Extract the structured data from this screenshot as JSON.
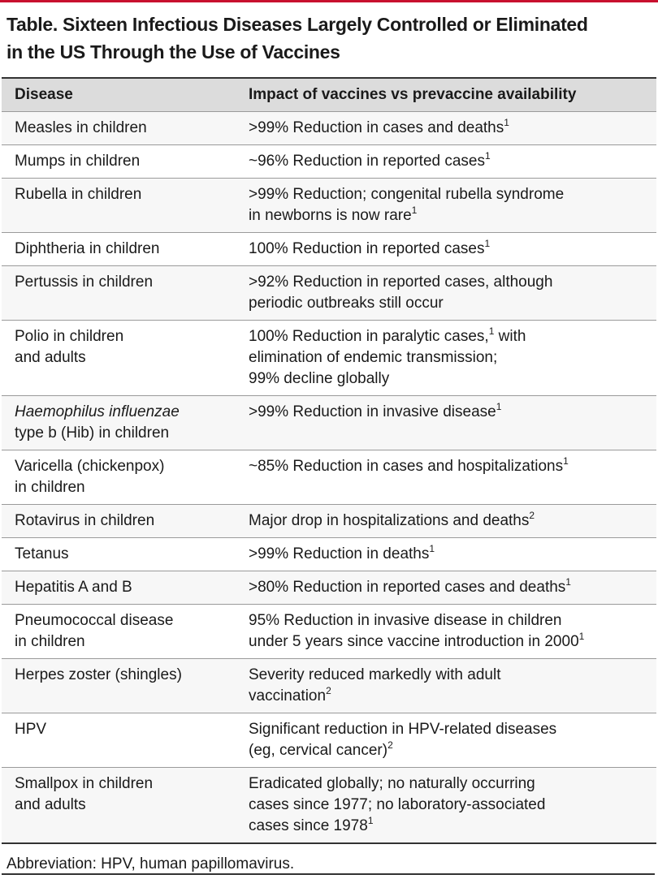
{
  "title": [
    "Table. Sixteen Infectious Diseases Largely Controlled or Eliminated",
    "in the US Through the Use of Vaccines"
  ],
  "table": {
    "header": [
      "Disease",
      "Impact of vaccines vs prevaccine availability"
    ],
    "rows": [
      {
        "disease": [
          [
            {
              "t": "Measles in children"
            }
          ]
        ],
        "impact": [
          [
            {
              "t": ">99% Reduction in cases and deaths"
            },
            {
              "t": "1",
              "s": "sup"
            }
          ]
        ]
      },
      {
        "disease": [
          [
            {
              "t": "Mumps in children"
            }
          ]
        ],
        "impact": [
          [
            {
              "t": "~96% Reduction in reported cases"
            },
            {
              "t": "1",
              "s": "sup"
            }
          ]
        ]
      },
      {
        "disease": [
          [
            {
              "t": "Rubella in children"
            }
          ]
        ],
        "impact": [
          [
            {
              "t": ">99% Reduction; congenital rubella syndrome"
            }
          ],
          [
            {
              "t": "in newborns is now rare"
            },
            {
              "t": "1",
              "s": "sup"
            }
          ]
        ]
      },
      {
        "disease": [
          [
            {
              "t": "Diphtheria in children"
            }
          ]
        ],
        "impact": [
          [
            {
              "t": "100% Reduction in reported cases"
            },
            {
              "t": "1",
              "s": "sup"
            }
          ]
        ]
      },
      {
        "disease": [
          [
            {
              "t": "Pertussis in children"
            }
          ]
        ],
        "impact": [
          [
            {
              "t": ">92% Reduction in reported cases, although"
            }
          ],
          [
            {
              "t": "periodic outbreaks still occur"
            }
          ]
        ]
      },
      {
        "disease": [
          [
            {
              "t": "Polio in children"
            }
          ],
          [
            {
              "t": "and adults"
            }
          ]
        ],
        "impact": [
          [
            {
              "t": "100% Reduction in paralytic cases,"
            },
            {
              "t": "1",
              "s": "sup"
            },
            {
              "t": " with"
            }
          ],
          [
            {
              "t": "elimination of endemic transmission;"
            }
          ],
          [
            {
              "t": "99% decline globally"
            }
          ]
        ]
      },
      {
        "disease": [
          [
            {
              "t": "Haemophilus influenzae",
              "s": "italic"
            }
          ],
          [
            {
              "t": "type b (Hib) in children"
            }
          ]
        ],
        "impact": [
          [
            {
              "t": ">99% Reduction in invasive disease"
            },
            {
              "t": "1",
              "s": "sup"
            }
          ]
        ]
      },
      {
        "disease": [
          [
            {
              "t": "Varicella (chickenpox)"
            }
          ],
          [
            {
              "t": "in children"
            }
          ]
        ],
        "impact": [
          [
            {
              "t": "~85% Reduction in cases and hospitalizations"
            },
            {
              "t": "1",
              "s": "sup"
            }
          ]
        ]
      },
      {
        "disease": [
          [
            {
              "t": "Rotavirus in children"
            }
          ]
        ],
        "impact": [
          [
            {
              "t": "Major drop in hospitalizations and deaths"
            },
            {
              "t": "2",
              "s": "sup"
            }
          ]
        ]
      },
      {
        "disease": [
          [
            {
              "t": "Tetanus"
            }
          ]
        ],
        "impact": [
          [
            {
              "t": ">99% Reduction in deaths"
            },
            {
              "t": "1",
              "s": "sup"
            }
          ]
        ]
      },
      {
        "disease": [
          [
            {
              "t": "Hepatitis A and B"
            }
          ]
        ],
        "impact": [
          [
            {
              "t": ">80% Reduction in reported cases and deaths"
            },
            {
              "t": "1",
              "s": "sup"
            }
          ]
        ]
      },
      {
        "disease": [
          [
            {
              "t": "Pneumococcal disease"
            }
          ],
          [
            {
              "t": "in children"
            }
          ]
        ],
        "impact": [
          [
            {
              "t": "95% Reduction in invasive disease in children"
            }
          ],
          [
            {
              "t": "under 5 years since vaccine introduction in 2000"
            },
            {
              "t": "1",
              "s": "sup"
            }
          ]
        ]
      },
      {
        "disease": [
          [
            {
              "t": "Herpes zoster (shingles)"
            }
          ]
        ],
        "impact": [
          [
            {
              "t": "Severity reduced markedly with adult"
            }
          ],
          [
            {
              "t": "vaccination"
            },
            {
              "t": "2",
              "s": "sup"
            }
          ]
        ]
      },
      {
        "disease": [
          [
            {
              "t": "HPV"
            }
          ]
        ],
        "impact": [
          [
            {
              "t": "Significant reduction in HPV-related diseases"
            }
          ],
          [
            {
              "t": "(eg, cervical cancer)"
            },
            {
              "t": "2",
              "s": "sup"
            }
          ]
        ]
      },
      {
        "disease": [
          [
            {
              "t": "Smallpox in children"
            }
          ],
          [
            {
              "t": "and adults"
            }
          ]
        ],
        "impact": [
          [
            {
              "t": "Eradicated globally; no naturally occurring"
            }
          ],
          [
            {
              "t": "cases since 1977; no laboratory-associated"
            }
          ],
          [
            {
              "t": "cases since 1978"
            },
            {
              "t": "1",
              "s": "sup"
            }
          ]
        ]
      }
    ]
  },
  "footnote": "Abbreviation: HPV, human papillomavirus."
}
